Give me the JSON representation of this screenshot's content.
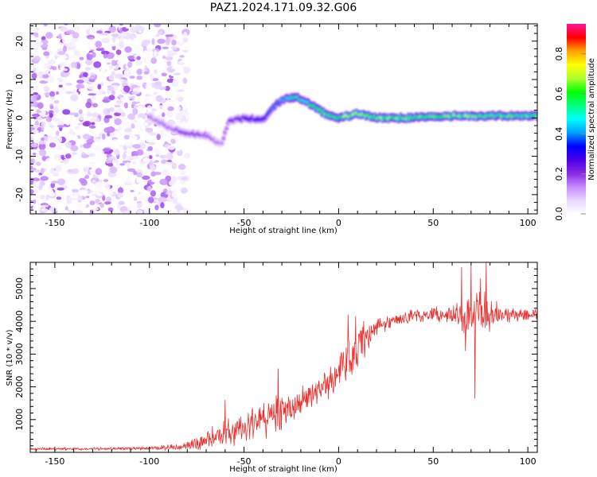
{
  "title": "PAZ1.2024.171.09.32.G06",
  "chart_data": [
    {
      "type": "heatmap",
      "xlabel": "Height of straight line (km)",
      "ylabel": "Frequency (Hz)",
      "xlim": [
        -163,
        105
      ],
      "ylim": [
        -25,
        24.5
      ],
      "xticks": [
        -150,
        -100,
        -50,
        0,
        50,
        100
      ],
      "yticks": [
        -20,
        -10,
        0,
        10,
        20
      ],
      "colorbar": {
        "label": "Normalized spectral amplitude",
        "range": [
          0,
          0.95
        ],
        "ticks": [
          "0.0",
          "0.2",
          "0.4",
          "0.6",
          "0.8"
        ],
        "tick_values": [
          0,
          0.2,
          0.4,
          0.6,
          0.8
        ],
        "colormap": [
          "#ffffff",
          "#e8d8ff",
          "#c58cff",
          "#8a2be2",
          "#4b00e8",
          "#0000ff",
          "#00a0ff",
          "#00ffff",
          "#00ff7f",
          "#00ff00",
          "#adff2f",
          "#ffff00",
          "#ffa500",
          "#ff0000",
          "#ff1493"
        ]
      },
      "noise_region_x": [
        -163,
        -80
      ],
      "ridge_frequency": [
        [
          -100,
          0.5
        ],
        [
          -90,
          -2.5
        ],
        [
          -80,
          -4.0
        ],
        [
          -70,
          -4.5
        ],
        [
          -62,
          -7.0
        ],
        [
          -58,
          -1.0
        ],
        [
          -50,
          0
        ],
        [
          -40,
          -0.5
        ],
        [
          -33,
          3.5
        ],
        [
          -28,
          5.0
        ],
        [
          -22,
          5.5
        ],
        [
          -15,
          3.5
        ],
        [
          -10,
          2.0
        ],
        [
          -5,
          0.5
        ],
        [
          0,
          0
        ],
        [
          10,
          1.0
        ],
        [
          20,
          0
        ],
        [
          40,
          0
        ],
        [
          60,
          0.5
        ],
        [
          80,
          0.5
        ],
        [
          105,
          0.5
        ]
      ],
      "ridge_amplitude": [
        [
          -100,
          0.15
        ],
        [
          -90,
          0.18
        ],
        [
          -80,
          0.22
        ],
        [
          -70,
          0.2
        ],
        [
          -62,
          0.15
        ],
        [
          -55,
          0.25
        ],
        [
          -45,
          0.3
        ],
        [
          -35,
          0.35
        ],
        [
          -25,
          0.5
        ],
        [
          -15,
          0.55
        ],
        [
          -5,
          0.6
        ],
        [
          0,
          0.62
        ],
        [
          10,
          0.65
        ],
        [
          20,
          0.62
        ],
        [
          40,
          0.6
        ],
        [
          60,
          0.62
        ],
        [
          80,
          0.6
        ],
        [
          105,
          0.58
        ]
      ]
    },
    {
      "type": "line",
      "xlabel": "Height of straight line (km)",
      "ylabel": "SNR (10 * v/v)",
      "xlim": [
        -163,
        105
      ],
      "ylim": [
        0,
        5800
      ],
      "xticks": [
        -150,
        -100,
        -50,
        0,
        50,
        100
      ],
      "yticks": [
        1000,
        2000,
        3000,
        4000,
        5000
      ],
      "color": "#e8302e",
      "x_step": 0.25,
      "trend": [
        [
          -163,
          100
        ],
        [
          -100,
          120
        ],
        [
          -85,
          160
        ],
        [
          -75,
          250
        ],
        [
          -65,
          500
        ],
        [
          -55,
          650
        ],
        [
          -45,
          800
        ],
        [
          -35,
          1100
        ],
        [
          -25,
          1400
        ],
        [
          -15,
          1700
        ],
        [
          -5,
          2100
        ],
        [
          0,
          2500
        ],
        [
          10,
          3200
        ],
        [
          20,
          3800
        ],
        [
          30,
          4050
        ],
        [
          40,
          4150
        ],
        [
          50,
          4200
        ],
        [
          60,
          4200
        ],
        [
          70,
          4150
        ],
        [
          80,
          4200
        ],
        [
          90,
          4200
        ],
        [
          105,
          4220
        ]
      ],
      "noise_amplitude": [
        [
          -163,
          50
        ],
        [
          -100,
          60
        ],
        [
          -80,
          150
        ],
        [
          -70,
          350
        ],
        [
          -60,
          500
        ],
        [
          -40,
          600
        ],
        [
          -30,
          700
        ],
        [
          -20,
          500
        ],
        [
          -10,
          450
        ],
        [
          0,
          650
        ],
        [
          10,
          900
        ],
        [
          15,
          500
        ],
        [
          25,
          250
        ],
        [
          60,
          250
        ],
        [
          68,
          900
        ],
        [
          78,
          1000
        ],
        [
          85,
          300
        ],
        [
          105,
          200
        ]
      ],
      "peaks": [
        [
          -60,
          1600
        ],
        [
          -32,
          2550
        ],
        [
          5,
          4200
        ],
        [
          9,
          4150
        ],
        [
          65,
          5650
        ],
        [
          70,
          5700
        ],
        [
          75,
          5300
        ],
        [
          78,
          5800
        ]
      ],
      "dips": [
        [
          72,
          1650
        ],
        [
          67,
          3100
        ]
      ]
    }
  ]
}
